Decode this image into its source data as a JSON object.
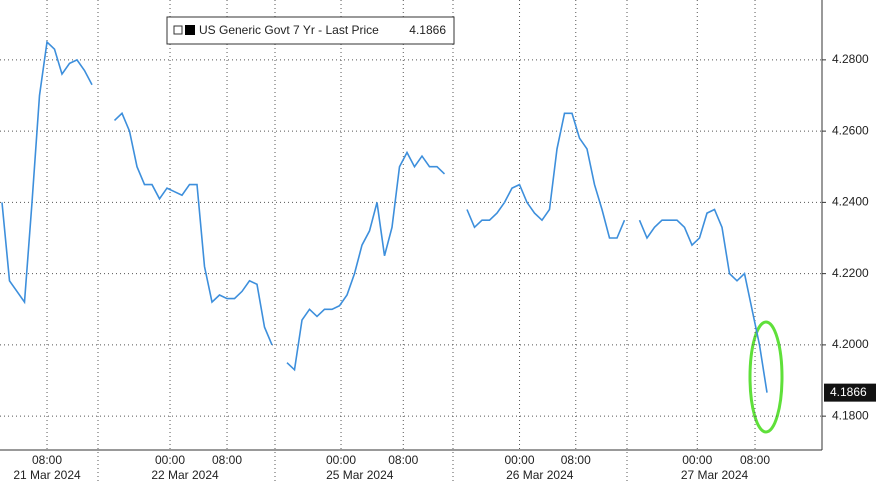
{
  "chart_data": {
    "type": "line",
    "x": [
      2,
      3,
      4,
      5,
      6,
      7,
      8,
      9,
      10,
      11,
      12,
      13,
      14,
      15,
      17,
      18,
      19,
      20,
      21,
      22,
      23,
      24,
      25,
      26,
      27,
      28,
      29,
      30,
      31,
      32,
      33,
      34,
      35,
      36,
      37,
      38,
      39,
      40,
      41,
      42,
      43,
      44,
      45,
      46,
      47,
      48,
      49,
      50,
      51,
      52,
      53,
      54,
      55,
      56,
      57,
      58,
      59,
      60,
      61,
      63,
      64,
      65,
      66,
      67,
      68,
      69,
      70,
      71,
      72,
      73,
      74,
      75,
      76,
      77,
      78,
      79,
      80,
      81,
      82,
      83,
      84,
      85,
      86,
      87,
      88,
      89,
      90,
      91,
      92,
      93,
      94,
      95,
      96,
      97,
      98,
      99,
      100,
      101,
      102,
      103,
      104
    ],
    "series": [
      {
        "name": "US Generic Govt 7 Yr - Last Price",
        "color": "#3d8fdc",
        "values": [
          4.24,
          4.218,
          4.215,
          4.212,
          4.24,
          4.27,
          4.285,
          4.283,
          4.276,
          4.279,
          4.28,
          4.277,
          4.273,
          null,
          4.263,
          4.265,
          4.26,
          4.25,
          4.245,
          4.245,
          4.241,
          4.244,
          4.243,
          4.242,
          4.245,
          4.245,
          4.222,
          4.212,
          4.214,
          4.213,
          4.213,
          4.215,
          4.218,
          4.217,
          4.205,
          4.2,
          null,
          4.195,
          4.193,
          4.207,
          4.21,
          4.208,
          4.21,
          4.21,
          4.211,
          4.214,
          4.22,
          4.228,
          4.232,
          4.24,
          4.225,
          4.233,
          4.25,
          4.254,
          4.25,
          4.253,
          4.25,
          4.25,
          4.248,
          null,
          4.238,
          4.233,
          4.235,
          4.235,
          4.237,
          4.24,
          4.244,
          4.245,
          4.24,
          4.237,
          4.235,
          4.238,
          4.255,
          4.265,
          4.265,
          4.258,
          4.255,
          4.245,
          4.238,
          4.23,
          4.23,
          4.235,
          null,
          4.235,
          4.23,
          4.233,
          4.235,
          4.235,
          4.235,
          4.233,
          4.228,
          4.23,
          4.237,
          4.238,
          4.233,
          4.22,
          4.218,
          4.22,
          4.21,
          4.2,
          4.1866
        ]
      }
    ],
    "last_price": 4.1866,
    "xlim": [
      1.73,
      111.33
    ],
    "ylim": [
      4.1705,
      4.2968
    ],
    "yticks": [
      {
        "value": 4.18,
        "label": "4.1800"
      },
      {
        "value": 4.2,
        "label": "4.2000"
      },
      {
        "value": 4.22,
        "label": "4.2200"
      },
      {
        "value": 4.24,
        "label": "4.2400"
      },
      {
        "value": 4.26,
        "label": "4.2600"
      },
      {
        "value": 4.28,
        "label": "4.2800"
      }
    ],
    "xticks": [
      {
        "value": 8,
        "label": "08:00"
      },
      {
        "value": 24.4,
        "label": "00:00"
      },
      {
        "value": 32,
        "label": "08:00"
      },
      {
        "value": 47.2,
        "label": "00:00"
      },
      {
        "value": 55.5,
        "label": "08:00"
      },
      {
        "value": 71,
        "label": "00:00"
      },
      {
        "value": 78.5,
        "label": "08:00"
      },
      {
        "value": 94.7,
        "label": "00:00"
      },
      {
        "value": 102.4,
        "label": "08:00"
      }
    ],
    "xdates": [
      {
        "value": 8,
        "label": "21 Mar 2024"
      },
      {
        "value": 26.4,
        "label": "22 Mar 2024"
      },
      {
        "value": 49.7,
        "label": "25 Mar 2024"
      },
      {
        "value": 73.7,
        "label": "26 Mar 2024"
      },
      {
        "value": 97,
        "label": "27 Mar 2024"
      }
    ],
    "grid": true
  }
}
